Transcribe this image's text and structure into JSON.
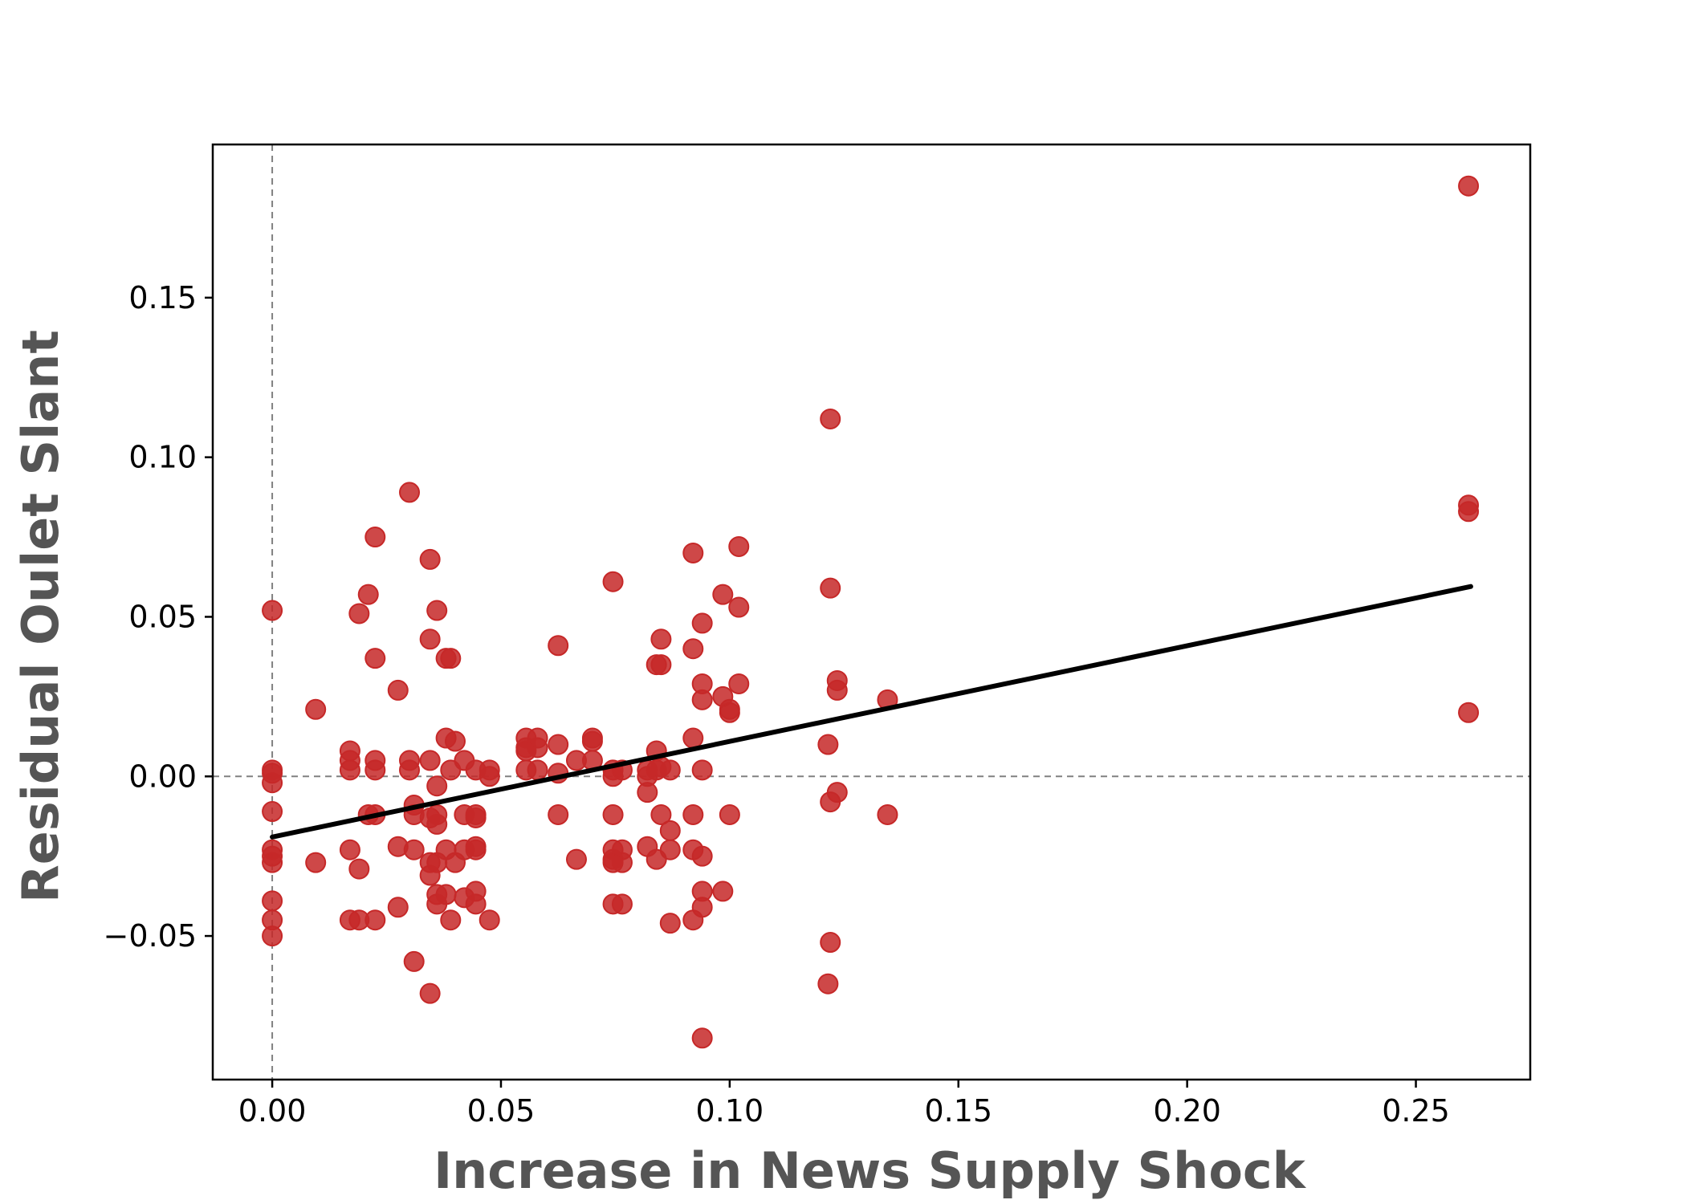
{
  "chart_data": {
    "type": "scatter",
    "title": "",
    "xlabel": "Increase in News Supply Shock",
    "ylabel": "Residual Oulet Slant",
    "xlim": [
      -0.013,
      0.275
    ],
    "ylim": [
      -0.095,
      0.198
    ],
    "xticks": [
      0.0,
      0.05,
      0.1,
      0.15,
      0.2,
      0.25
    ],
    "xtick_labels": [
      "0.00",
      "0.05",
      "0.10",
      "0.15",
      "0.20",
      "0.25"
    ],
    "yticks": [
      -0.05,
      0.0,
      0.05,
      0.1,
      0.15
    ],
    "ytick_labels": [
      "−0.05",
      "0.00",
      "0.05",
      "0.10",
      "0.15"
    ],
    "grid": false,
    "reference_lines": {
      "x": 0.0,
      "y": 0.0,
      "style": "dashed",
      "color": "#808080"
    },
    "colors": {
      "points": "#c62828",
      "fit_line": "#000000",
      "axis_title": "#555555"
    },
    "fit_line": {
      "x": [
        0.0,
        0.262
      ],
      "y": [
        -0.019,
        0.0595
      ]
    },
    "points": [
      [
        0.0,
        0.052
      ],
      [
        0.0,
        0.002
      ],
      [
        0.0,
        0.001
      ],
      [
        0.0,
        -0.002
      ],
      [
        0.0,
        -0.011
      ],
      [
        0.0,
        -0.023
      ],
      [
        0.0,
        -0.025
      ],
      [
        0.0,
        -0.027
      ],
      [
        0.0,
        -0.039
      ],
      [
        0.0,
        -0.045
      ],
      [
        0.0,
        -0.05
      ],
      [
        0.0095,
        0.021
      ],
      [
        0.0095,
        -0.027
      ],
      [
        0.017,
        0.008
      ],
      [
        0.017,
        0.005
      ],
      [
        0.017,
        0.002
      ],
      [
        0.017,
        -0.023
      ],
      [
        0.017,
        -0.045
      ],
      [
        0.019,
        0.051
      ],
      [
        0.019,
        -0.029
      ],
      [
        0.019,
        -0.045
      ],
      [
        0.021,
        0.057
      ],
      [
        0.021,
        -0.012
      ],
      [
        0.0225,
        0.075
      ],
      [
        0.0225,
        0.037
      ],
      [
        0.0225,
        0.005
      ],
      [
        0.0225,
        0.002
      ],
      [
        0.0225,
        -0.012
      ],
      [
        0.0225,
        -0.045
      ],
      [
        0.0275,
        0.027
      ],
      [
        0.0275,
        -0.022
      ],
      [
        0.0275,
        -0.041
      ],
      [
        0.03,
        0.089
      ],
      [
        0.03,
        0.005
      ],
      [
        0.03,
        0.002
      ],
      [
        0.031,
        -0.009
      ],
      [
        0.031,
        -0.012
      ],
      [
        0.031,
        -0.023
      ],
      [
        0.031,
        -0.058
      ],
      [
        0.0345,
        0.068
      ],
      [
        0.0345,
        0.043
      ],
      [
        0.0345,
        0.005
      ],
      [
        0.0345,
        -0.013
      ],
      [
        0.0345,
        -0.027
      ],
      [
        0.0345,
        -0.031
      ],
      [
        0.0345,
        -0.068
      ],
      [
        0.036,
        0.052
      ],
      [
        0.036,
        -0.003
      ],
      [
        0.036,
        -0.012
      ],
      [
        0.036,
        -0.015
      ],
      [
        0.036,
        -0.027
      ],
      [
        0.036,
        -0.037
      ],
      [
        0.036,
        -0.04
      ],
      [
        0.038,
        0.037
      ],
      [
        0.038,
        0.012
      ],
      [
        0.038,
        -0.023
      ],
      [
        0.038,
        -0.037
      ],
      [
        0.039,
        0.037
      ],
      [
        0.039,
        0.002
      ],
      [
        0.039,
        -0.045
      ],
      [
        0.04,
        0.011
      ],
      [
        0.04,
        -0.027
      ],
      [
        0.042,
        0.005
      ],
      [
        0.042,
        -0.012
      ],
      [
        0.042,
        -0.023
      ],
      [
        0.042,
        -0.038
      ],
      [
        0.0445,
        0.002
      ],
      [
        0.0445,
        -0.012
      ],
      [
        0.0445,
        -0.013
      ],
      [
        0.0445,
        -0.022
      ],
      [
        0.0445,
        -0.023
      ],
      [
        0.0445,
        -0.036
      ],
      [
        0.0445,
        -0.04
      ],
      [
        0.0475,
        0.002
      ],
      [
        0.0475,
        0.0
      ],
      [
        0.0475,
        -0.045
      ],
      [
        0.0555,
        0.012
      ],
      [
        0.0555,
        0.009
      ],
      [
        0.0555,
        0.008
      ],
      [
        0.0555,
        0.002
      ],
      [
        0.058,
        0.012
      ],
      [
        0.058,
        0.009
      ],
      [
        0.058,
        0.002
      ],
      [
        0.0625,
        0.041
      ],
      [
        0.0625,
        0.01
      ],
      [
        0.0625,
        0.001
      ],
      [
        0.0625,
        -0.012
      ],
      [
        0.0665,
        0.005
      ],
      [
        0.0665,
        -0.026
      ],
      [
        0.07,
        0.012
      ],
      [
        0.07,
        0.011
      ],
      [
        0.07,
        0.005
      ],
      [
        0.0745,
        0.061
      ],
      [
        0.0745,
        0.002
      ],
      [
        0.0745,
        0.0
      ],
      [
        0.0745,
        -0.012
      ],
      [
        0.0745,
        -0.023
      ],
      [
        0.0745,
        -0.026
      ],
      [
        0.0745,
        -0.027
      ],
      [
        0.0745,
        -0.04
      ],
      [
        0.0765,
        0.002
      ],
      [
        0.0765,
        -0.023
      ],
      [
        0.0765,
        -0.027
      ],
      [
        0.0765,
        -0.04
      ],
      [
        0.082,
        0.002
      ],
      [
        0.082,
        0.0
      ],
      [
        0.082,
        -0.005
      ],
      [
        0.082,
        -0.022
      ],
      [
        0.084,
        0.035
      ],
      [
        0.084,
        0.008
      ],
      [
        0.084,
        0.002
      ],
      [
        0.084,
        -0.026
      ],
      [
        0.085,
        0.043
      ],
      [
        0.085,
        0.035
      ],
      [
        0.085,
        0.003
      ],
      [
        0.085,
        -0.012
      ],
      [
        0.087,
        0.002
      ],
      [
        0.087,
        -0.017
      ],
      [
        0.087,
        -0.023
      ],
      [
        0.087,
        -0.046
      ],
      [
        0.092,
        0.07
      ],
      [
        0.092,
        0.04
      ],
      [
        0.092,
        0.012
      ],
      [
        0.092,
        -0.012
      ],
      [
        0.092,
        -0.023
      ],
      [
        0.092,
        -0.045
      ],
      [
        0.094,
        0.048
      ],
      [
        0.094,
        0.029
      ],
      [
        0.094,
        0.024
      ],
      [
        0.094,
        0.002
      ],
      [
        0.094,
        -0.025
      ],
      [
        0.094,
        -0.036
      ],
      [
        0.094,
        -0.041
      ],
      [
        0.094,
        -0.082
      ],
      [
        0.0985,
        0.057
      ],
      [
        0.0985,
        0.025
      ],
      [
        0.0985,
        -0.036
      ],
      [
        0.1,
        0.021
      ],
      [
        0.1,
        0.02
      ],
      [
        0.1,
        -0.012
      ],
      [
        0.102,
        0.072
      ],
      [
        0.102,
        0.053
      ],
      [
        0.102,
        0.029
      ],
      [
        0.1215,
        0.01
      ],
      [
        0.1215,
        -0.065
      ],
      [
        0.122,
        0.112
      ],
      [
        0.122,
        0.059
      ],
      [
        0.122,
        -0.008
      ],
      [
        0.122,
        -0.052
      ],
      [
        0.1235,
        0.03
      ],
      [
        0.1235,
        0.027
      ],
      [
        0.1235,
        -0.005
      ],
      [
        0.1345,
        0.024
      ],
      [
        0.1345,
        -0.012
      ],
      [
        0.2615,
        0.185
      ],
      [
        0.2615,
        0.085
      ],
      [
        0.2615,
        0.083
      ],
      [
        0.2615,
        0.02
      ]
    ]
  }
}
